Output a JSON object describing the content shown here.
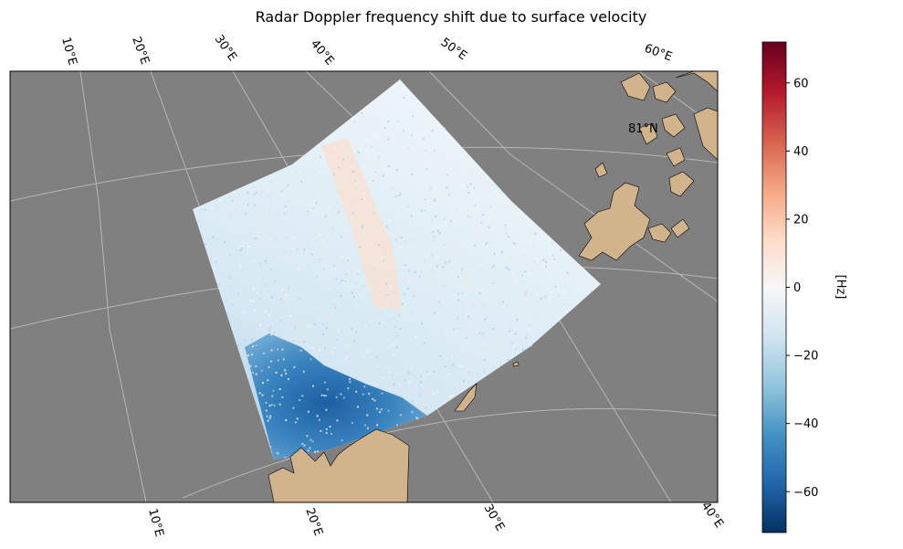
{
  "chart_data": {
    "type": "heatmap",
    "title": "Radar Doppler frequency shift due to surface velocity",
    "colorbar": {
      "label": "[Hz]",
      "range": [
        -72,
        72
      ],
      "ticks": [
        60,
        40,
        20,
        0,
        -20,
        -40,
        -60
      ],
      "tick_labels": [
        "60",
        "40",
        "20",
        "0",
        "−20",
        "−40",
        "−60"
      ],
      "colormap": "RdBu_r",
      "colors": [
        "#053061",
        "#2166ac",
        "#4393c3",
        "#92c5de",
        "#d1e5f0",
        "#f7f7f7",
        "#fddbc7",
        "#f4a582",
        "#d6604d",
        "#b2182b",
        "#67001f"
      ]
    },
    "map": {
      "ocean_color": "#808080",
      "land_color": "#d2b48c",
      "grid": true,
      "top_lon_labels": [
        "10°E",
        "20°E",
        "30°E",
        "40°E",
        "50°E",
        "60°E"
      ],
      "bottom_lon_labels": [
        "10°E",
        "20°E",
        "30°E",
        "40°E"
      ],
      "lat_labels": [
        "81°N"
      ]
    },
    "swath_description_values": {
      "dominant_hz": -10,
      "southwest_region_hz": -45,
      "central_streak_hz": 5
    }
  }
}
